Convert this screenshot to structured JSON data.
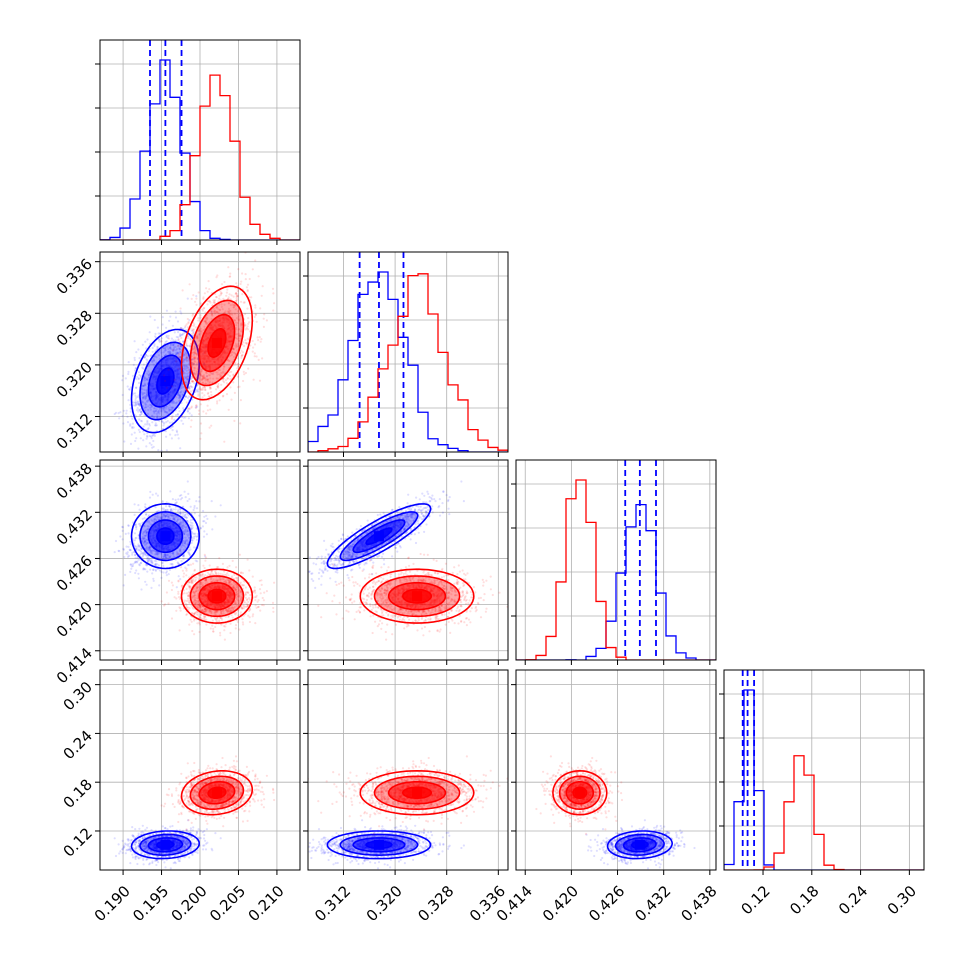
{
  "figure": {
    "type": "corner-plot"
  },
  "colors": {
    "blue": "#0000ff",
    "red": "#ff0000",
    "grid": "#b0b0b0",
    "axis": "#000000"
  },
  "chart_data": {
    "type": "scatter",
    "subtype": "corner",
    "parameters": [
      {
        "index": 0,
        "range": [
          0.187,
          0.213
        ],
        "ticks": [
          "0.190",
          "0.195",
          "0.200",
          "0.205",
          "0.210"
        ]
      },
      {
        "index": 1,
        "range": [
          0.3065,
          0.3375
        ],
        "ticks": [
          "0.312",
          "0.320",
          "0.328",
          "0.336"
        ]
      },
      {
        "index": 2,
        "range": [
          0.4128,
          0.4388
        ],
        "ticks": [
          "0.414",
          "0.420",
          "0.426",
          "0.432",
          "0.438"
        ]
      },
      {
        "index": 3,
        "range": [
          0.072,
          0.318
        ],
        "ticks": [
          "0.12",
          "0.18",
          "0.24",
          "0.30"
        ]
      }
    ],
    "series": [
      {
        "color": "blue",
        "mean": [
          0.1955,
          0.3175,
          0.4289,
          0.103
        ],
        "std": [
          0.0022,
          0.004,
          0.0021,
          0.0085
        ],
        "corr": [
          [
            0,
            1,
            0.35
          ],
          [
            1,
            2,
            0.85
          ],
          [
            0,
            3,
            0.1
          ],
          [
            2,
            3,
            0.1
          ]
        ],
        "quantiles": [
          [
            0.1935,
            0.1955,
            0.1976
          ],
          [
            0.3145,
            0.3175,
            0.3213
          ],
          [
            0.427,
            0.4289,
            0.431
          ],
          [
            0.095,
            0.101,
            0.109
          ]
        ]
      },
      {
        "color": "red",
        "mean": [
          0.2022,
          0.3234,
          0.4211,
          0.167
        ],
        "std": [
          0.0023,
          0.0044,
          0.00175,
          0.0135
        ],
        "corr": [
          [
            0,
            1,
            0.4
          ],
          [
            0,
            3,
            0.15
          ]
        ]
      }
    ],
    "legend": "none",
    "grid": true,
    "diagonal": "1D histograms (step)",
    "offdiagonal": "2D density contours with scatter points"
  }
}
